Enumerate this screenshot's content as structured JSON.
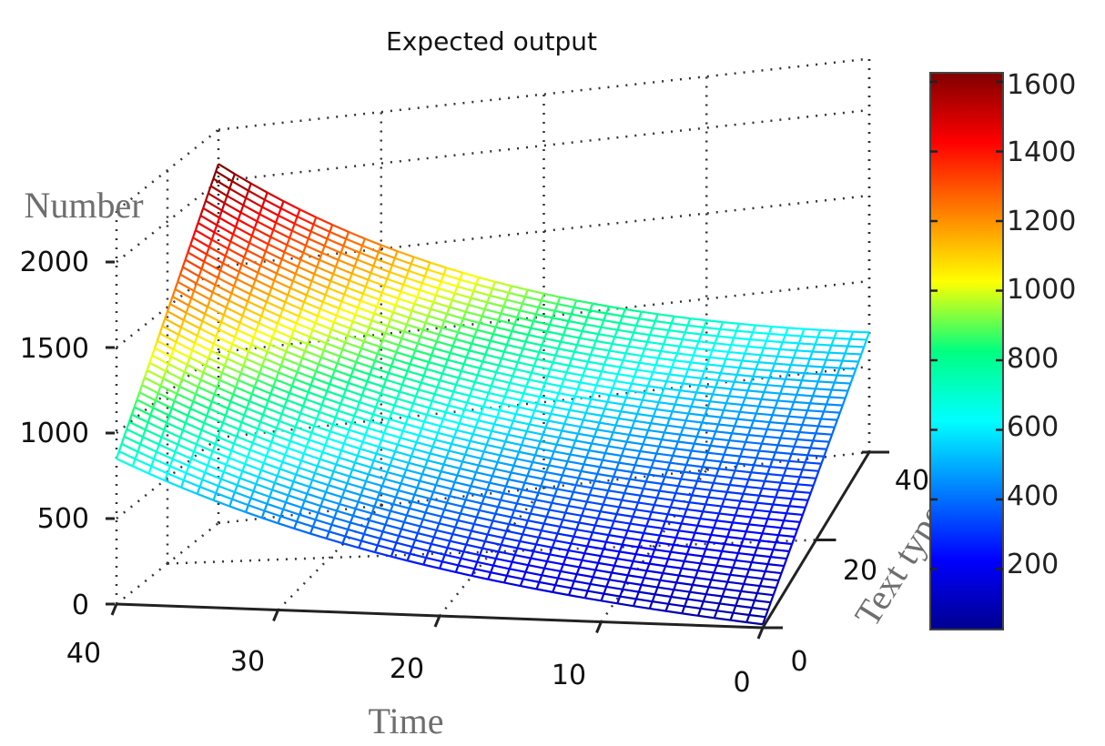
{
  "chart_data": {
    "type": "surface",
    "title": "Expected output",
    "xlabel": "Time",
    "ylabel": "Text type",
    "zlabel": "Number",
    "x_ticks": [
      40,
      30,
      20,
      10,
      0
    ],
    "y_ticks": [
      0,
      20,
      40
    ],
    "z_ticks": [
      0,
      500,
      1000,
      1500,
      2000
    ],
    "xlim": [
      0,
      40
    ],
    "ylim": [
      0,
      40
    ],
    "zlim": [
      0,
      2300
    ],
    "grid": true,
    "grid_style": "dotted",
    "mesh_resolution": [
      41,
      41
    ],
    "corner_values": {
      "time_40_texttype_40": 2100,
      "time_40_texttype_0": 850,
      "time_0_texttype_40": 700,
      "time_0_texttype_0": 20
    },
    "description": "Mesh surface decreasing as Time decreases from 40 to 0 and as Text type decreases from 40 to 0",
    "colorbar": {
      "colormap": "jet",
      "ticks": [
        200,
        400,
        600,
        800,
        1000,
        1200,
        1400,
        1600
      ],
      "range": [
        0,
        1600
      ]
    }
  },
  "labels": {
    "title": "Expected output",
    "xlabel": "Time",
    "ylabel": "Text type",
    "zlabel": "Number",
    "x_ticks": [
      "40",
      "30",
      "20",
      "10",
      "0"
    ],
    "y_ticks": [
      "0",
      "20",
      "40"
    ],
    "z_ticks": [
      "0",
      "500",
      "1000",
      "1500",
      "2000"
    ],
    "cb_ticks": [
      "200",
      "400",
      "600",
      "800",
      "1000",
      "1200",
      "1400",
      "1600"
    ]
  }
}
